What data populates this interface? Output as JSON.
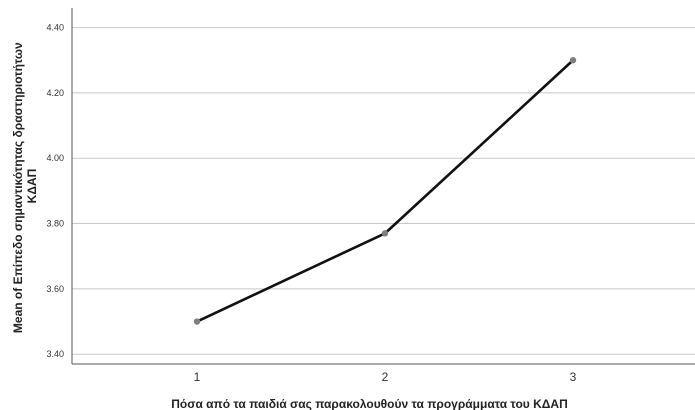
{
  "chart_data": {
    "type": "line",
    "xlabel": "Πόσα από τα παιδιά σας παρακολουθούν τα προγράμματα του ΚΔΑΠ",
    "ylabel_lines": [
      "Mean of Επίπεδο σημαντικότητας δραστηριοτήτων",
      "ΚΔΑΠ"
    ],
    "categories": [
      "1",
      "2",
      "3"
    ],
    "series": [
      {
        "values": [
          3.5,
          3.77,
          4.3
        ]
      }
    ],
    "ylim": [
      3.37,
      4.46
    ],
    "yticks": [
      3.4,
      3.6,
      3.8,
      4.0,
      4.2,
      4.4
    ],
    "ytick_labels": [
      "3.40",
      "3.60",
      "3.80",
      "4.00",
      "4.20",
      "4.40"
    ],
    "grid": true,
    "colors": {
      "line": "#111111",
      "marker": "#7f7f7f",
      "grid": "#c8c8c8",
      "axis": "#555555"
    }
  }
}
